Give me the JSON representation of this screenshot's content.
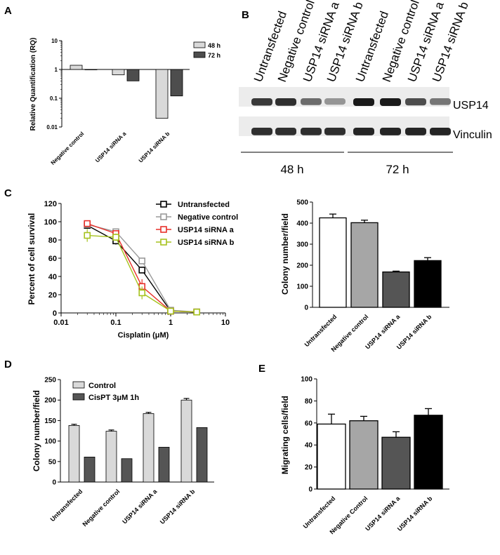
{
  "panels": {
    "A": {
      "letter": "A",
      "chart_data": {
        "type": "bar",
        "scale": "log",
        "ylabel": "Relative Quantification (RQ)",
        "ylim": [
          0.01,
          10
        ],
        "yticks": [
          "10",
          "1",
          "0.1",
          "0.01"
        ],
        "categories": [
          "Negative control",
          "USP14 siRNA a",
          "USP14 siRNA b"
        ],
        "series": [
          {
            "name": "48 h",
            "color": "#d9d9d9",
            "values": [
              1.4,
              0.65,
              0.02
            ]
          },
          {
            "name": "72 h",
            "color": "#4d4d4d",
            "values": [
              0.97,
              0.4,
              0.12
            ]
          }
        ],
        "legend": "top-right"
      }
    },
    "B": {
      "letter": "B",
      "lanes": [
        "Untransfected",
        "Negative control",
        "USP14 siRNA a",
        "USP14 siRNA b",
        "Untransfected",
        "Negative control",
        "USP14 siRNA a",
        "USP14 siRNA b"
      ],
      "bands": [
        {
          "name": "USP14",
          "intensity": [
            0.85,
            0.9,
            0.6,
            0.4,
            1.0,
            1.0,
            0.75,
            0.55
          ]
        },
        {
          "name": "Vinculin",
          "intensity": [
            0.9,
            0.9,
            0.9,
            0.9,
            0.95,
            0.95,
            0.95,
            0.95
          ]
        }
      ],
      "groups": [
        "48 h",
        "72 h"
      ]
    },
    "C": {
      "letter": "C",
      "line": {
        "chart_data": {
          "type": "line",
          "scale_x": "log",
          "xlabel": "Cisplatin (μM)",
          "ylabel": "Percent of cell survival",
          "xlim": [
            0.01,
            10
          ],
          "ylim": [
            0,
            120
          ],
          "xticks": [
            "0.01",
            "0.1",
            "1",
            "10"
          ],
          "yticks": [
            "0",
            "20",
            "40",
            "60",
            "80",
            "100",
            "120"
          ],
          "x": [
            0.03,
            0.1,
            0.3,
            1,
            3
          ],
          "series": [
            {
              "name": "Untransfected",
              "color": "#000000",
              "values": [
                96,
                79,
                47,
                2,
                1
              ],
              "err": [
                2,
                4,
                3,
                1,
                1
              ]
            },
            {
              "name": "Negative control",
              "color": "#9a9a9a",
              "values": [
                97,
                89,
                57,
                3,
                1
              ],
              "err": [
                2,
                3,
                3,
                1,
                1
              ]
            },
            {
              "name": "USP14 siRNA a",
              "color": "#e8302a",
              "values": [
                98,
                87,
                29,
                2,
                1
              ],
              "err": [
                2,
                3,
                8,
                1,
                1
              ]
            },
            {
              "name": "USP14 siRNA b",
              "color": "#a6c21e",
              "values": [
                85,
                83,
                22,
                2,
                1
              ],
              "err": [
                7,
                4,
                7,
                1,
                1
              ]
            }
          ],
          "legend": "top-right"
        }
      },
      "bar": {
        "chart_data": {
          "type": "bar",
          "ylabel": "Colony number/field",
          "ylim": [
            0,
            500
          ],
          "yticks": [
            "0",
            "100",
            "200",
            "300",
            "400",
            "500"
          ],
          "categories": [
            "Untransfected",
            "Negative control",
            "USP14 siRNA a",
            "USP14 siRNA b"
          ],
          "values": [
            425,
            402,
            168,
            222
          ],
          "err": [
            18,
            12,
            4,
            14
          ],
          "colors": [
            "#ffffff",
            "#a6a6a6",
            "#555555",
            "#000000"
          ]
        }
      }
    },
    "D": {
      "letter": "D",
      "chart_data": {
        "type": "bar",
        "ylabel": "Colony number/field",
        "ylim": [
          0,
          250
        ],
        "yticks": [
          "0",
          "50",
          "100",
          "150",
          "200",
          "250"
        ],
        "categories": [
          "Untransfected",
          "Negative control",
          "USP14 siRNA a",
          "USP14 siRNA b"
        ],
        "series": [
          {
            "name": "Control",
            "color": "#d9d9d9",
            "values": [
              138,
              124,
              167,
              200
            ],
            "err": [
              3,
              3,
              3,
              4
            ]
          },
          {
            "name": "CisPT 3μM 1h",
            "color": "#555555",
            "values": [
              61,
              57,
              85,
              133
            ],
            "err": [
              0,
              0,
              0,
              0
            ]
          }
        ],
        "legend": "top-left"
      }
    },
    "E": {
      "letter": "E",
      "chart_data": {
        "type": "bar",
        "ylabel": "Migrating cells/field",
        "ylim": [
          0,
          100
        ],
        "yticks": [
          "0",
          "20",
          "40",
          "60",
          "80",
          "100"
        ],
        "categories": [
          "Untransfected",
          "Negative Control",
          "USP14 siRNA a",
          "USP14 siRNA b"
        ],
        "values": [
          59,
          62,
          47,
          67
        ],
        "err": [
          9,
          4,
          5,
          6
        ],
        "colors": [
          "#ffffff",
          "#a6a6a6",
          "#555555",
          "#000000"
        ]
      }
    }
  }
}
